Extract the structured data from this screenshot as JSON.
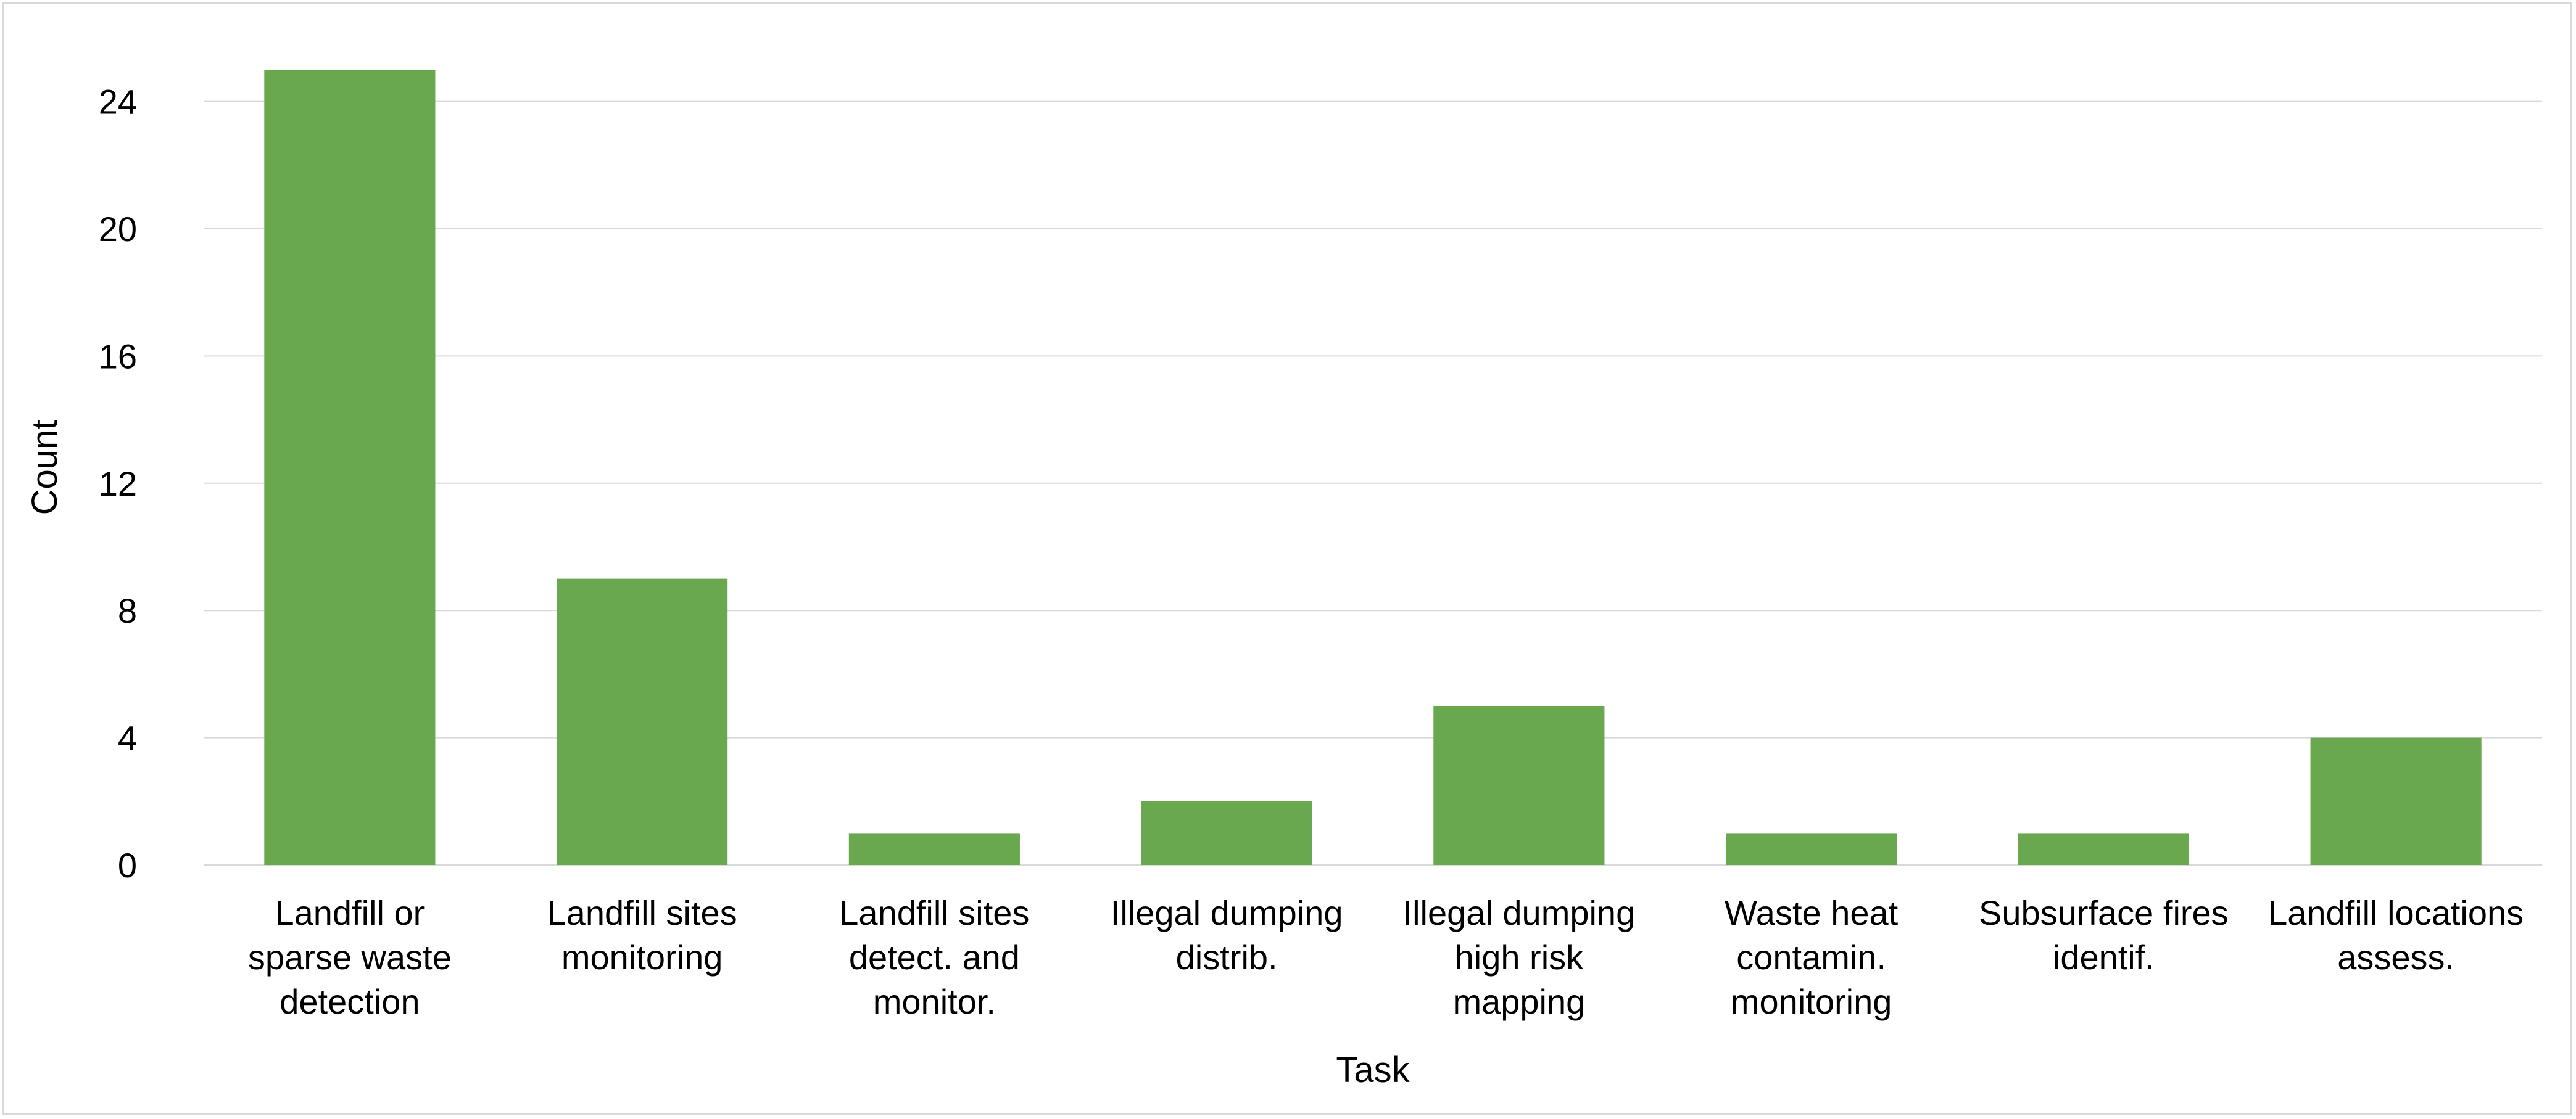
{
  "chart_data": {
    "type": "bar",
    "title": "",
    "xlabel": "Task",
    "ylabel": "Count",
    "ylim": [
      0,
      25
    ],
    "yticks": [
      0,
      4,
      8,
      12,
      16,
      20,
      24
    ],
    "grid": true,
    "legend": "none",
    "bar_color": "#6aa84f",
    "grid_color": "#d9d9d9",
    "categories": [
      [
        "Landfill or",
        "sparse waste",
        "detection"
      ],
      [
        "Landfill sites",
        "monitoring"
      ],
      [
        "Landfill sites",
        "detect. and",
        "monitor."
      ],
      [
        "Illegal dumping",
        "distrib."
      ],
      [
        "Illegal dumping",
        "high risk",
        "mapping"
      ],
      [
        "Waste heat",
        "contamin.",
        "monitoring"
      ],
      [
        "Subsurface fires",
        "identif."
      ],
      [
        "Landfill locations",
        "assess."
      ]
    ],
    "values": [
      25,
      9,
      1,
      2,
      5,
      1,
      1,
      4
    ]
  }
}
